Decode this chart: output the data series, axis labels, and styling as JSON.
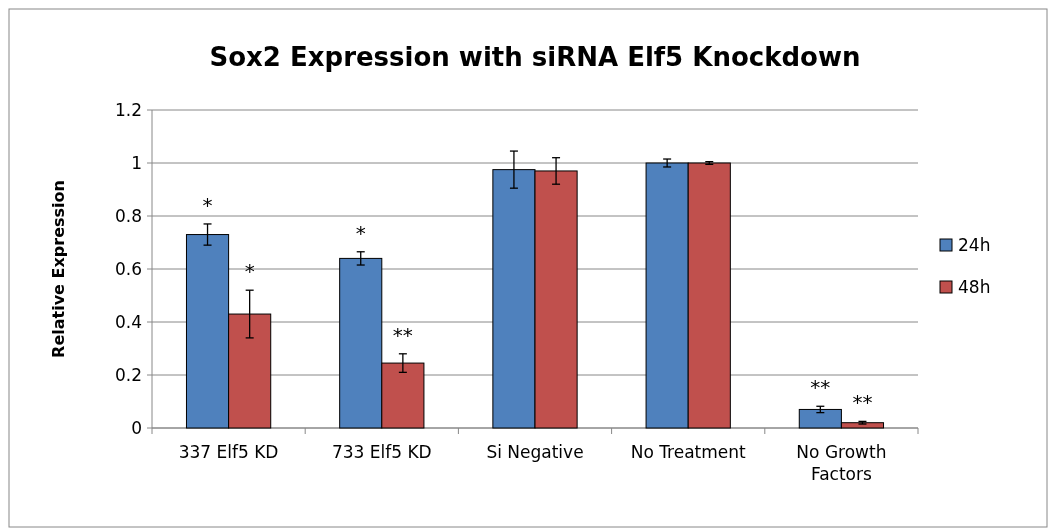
{
  "chart_data": {
    "type": "bar",
    "title": "Sox2 Expression with siRNA Elf5 Knockdown",
    "ylabel": "Relative Expression",
    "categories": [
      "337 Elf5 KD",
      "733 Elf5 KD",
      "Si Negative",
      "No Treatment",
      "No Growth Factors"
    ],
    "series": [
      {
        "name": "24h",
        "color": "#4f81bd",
        "values": [
          0.73,
          0.64,
          0.975,
          1.0,
          0.07
        ],
        "errors": [
          0.04,
          0.025,
          0.07,
          0.015,
          0.012
        ],
        "value_labels": [
          "*",
          "*",
          null,
          null,
          "**"
        ]
      },
      {
        "name": "48h",
        "color": "#c0504d",
        "values": [
          0.43,
          0.245,
          0.97,
          1.0,
          0.02
        ],
        "errors": [
          0.09,
          0.035,
          0.05,
          0.005,
          0.005
        ],
        "value_labels": [
          "*",
          "**",
          null,
          null,
          "**"
        ]
      }
    ],
    "ylim": [
      0,
      1.2
    ],
    "yticks": [
      0,
      0.2,
      0.4,
      0.6,
      0.8,
      1,
      1.2
    ],
    "grid": "y",
    "legend": "right"
  }
}
